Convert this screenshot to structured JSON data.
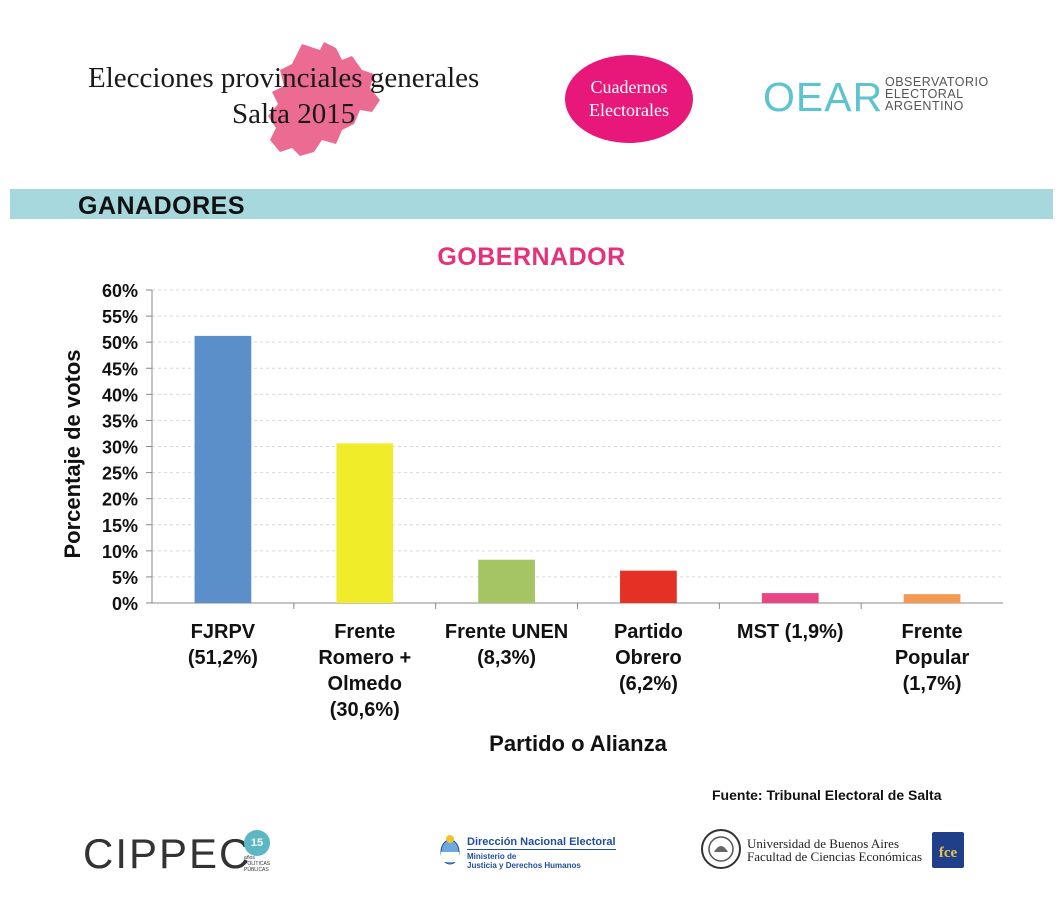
{
  "header": {
    "title_line1": "Elecciones provinciales generales",
    "title_line2": "Salta 2015",
    "badge_line1": "Cuadernos",
    "badge_line2": "Electorales",
    "oear_logo": "OEAR",
    "oear_line1": "OBSERVATORIO",
    "oear_line2": "ELECTORAL",
    "oear_line3": "ARGENTINO"
  },
  "section": {
    "title": "GANADORES"
  },
  "chart_data": {
    "type": "bar",
    "title": "GOBERNADOR",
    "xlabel": "Partido o Alianza",
    "ylabel": "Porcentaje de votos",
    "ylim": [
      0,
      60
    ],
    "yticks": [
      "0%",
      "5%",
      "10%",
      "15%",
      "20%",
      "25%",
      "30%",
      "35%",
      "40%",
      "45%",
      "50%",
      "55%",
      "60%"
    ],
    "grid": true,
    "categories": [
      [
        "FJRPV",
        "(51,2%)"
      ],
      [
        "Frente",
        "Romero +",
        "Olmedo",
        "(30,6%)"
      ],
      [
        "Frente UNEN",
        "(8,3%)"
      ],
      [
        "Partido",
        "Obrero",
        "(6,2%)"
      ],
      [
        "MST (1,9%)"
      ],
      [
        "Frente",
        "Popular",
        "(1,7%)"
      ]
    ],
    "values": [
      51.2,
      30.6,
      8.3,
      6.2,
      1.9,
      1.7
    ],
    "colors": [
      "#5b8fc9",
      "#f0ec2a",
      "#a5c565",
      "#e53025",
      "#e84584",
      "#f49a54"
    ]
  },
  "source": "Fuente: Tribunal Electoral de Salta",
  "footer": {
    "cippec": "CIPPEC",
    "cippec_badge": "15",
    "cippec_badge_sub": "años POLÍTICAS PÚBLICAS",
    "dne_title": "Dirección Nacional Electoral",
    "dne_line1": "Ministerio de",
    "dne_line2": "Justicia y Derechos Humanos",
    "uba_line1": "Universidad de Buenos Aires",
    "uba_line2": "Facultad de Ciencias Económicas",
    "fce": "fce"
  },
  "colors": {
    "accent_pink": "#e8177a",
    "map_pink": "#ec6b93",
    "band": "#a7d8dd",
    "oear": "#5cc3cf",
    "chart_title": "#e6307a"
  }
}
